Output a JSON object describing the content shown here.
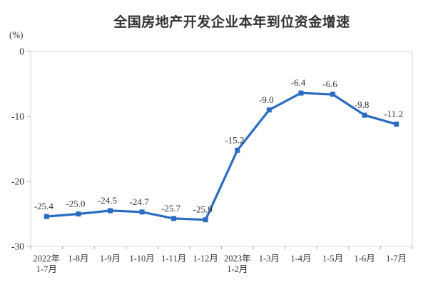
{
  "chart": {
    "title": "全国房地产开发企业本年到位资金增速",
    "unit_label": "(%)"
  },
  "colors": {
    "line": "#2B6CC3",
    "marker": "#2B6CC3",
    "plot_border": "#D6D6D6",
    "tick": "#A6A6A6",
    "text": "#333333",
    "background": "#FFFFFF"
  },
  "chart_data": {
    "type": "line",
    "title": "全国房地产开发企业本年到位资金增速",
    "ylabel": "(%)",
    "categories": [
      "2022年\n1-7月",
      "1-8月",
      "1-9月",
      "1-10月",
      "1-11月",
      "1-12月",
      "2023年\n1-2月",
      "1-3月",
      "1-4月",
      "1-5月",
      "1-6月",
      "1-7月"
    ],
    "values": [
      -25.4,
      -25.0,
      -24.5,
      -24.7,
      -25.7,
      -25.9,
      -15.2,
      -9.0,
      -6.4,
      -6.6,
      -9.8,
      -11.2
    ],
    "data_labels": [
      "-25.4",
      "-25.0",
      "-24.5",
      "-24.7",
      "-25.7",
      "-25.9",
      "-15.2",
      "-9.0",
      "-6.4",
      "-6.6",
      "-9.8",
      "-11.2"
    ],
    "ylim": [
      -30,
      0
    ],
    "yticks": [
      0,
      -10,
      -20,
      -30
    ],
    "ytick_labels": [
      "0",
      "-10",
      "-20",
      "-30"
    ],
    "grid": false,
    "legend": "none",
    "marker": "square",
    "line_color": "#2B6CC3"
  }
}
